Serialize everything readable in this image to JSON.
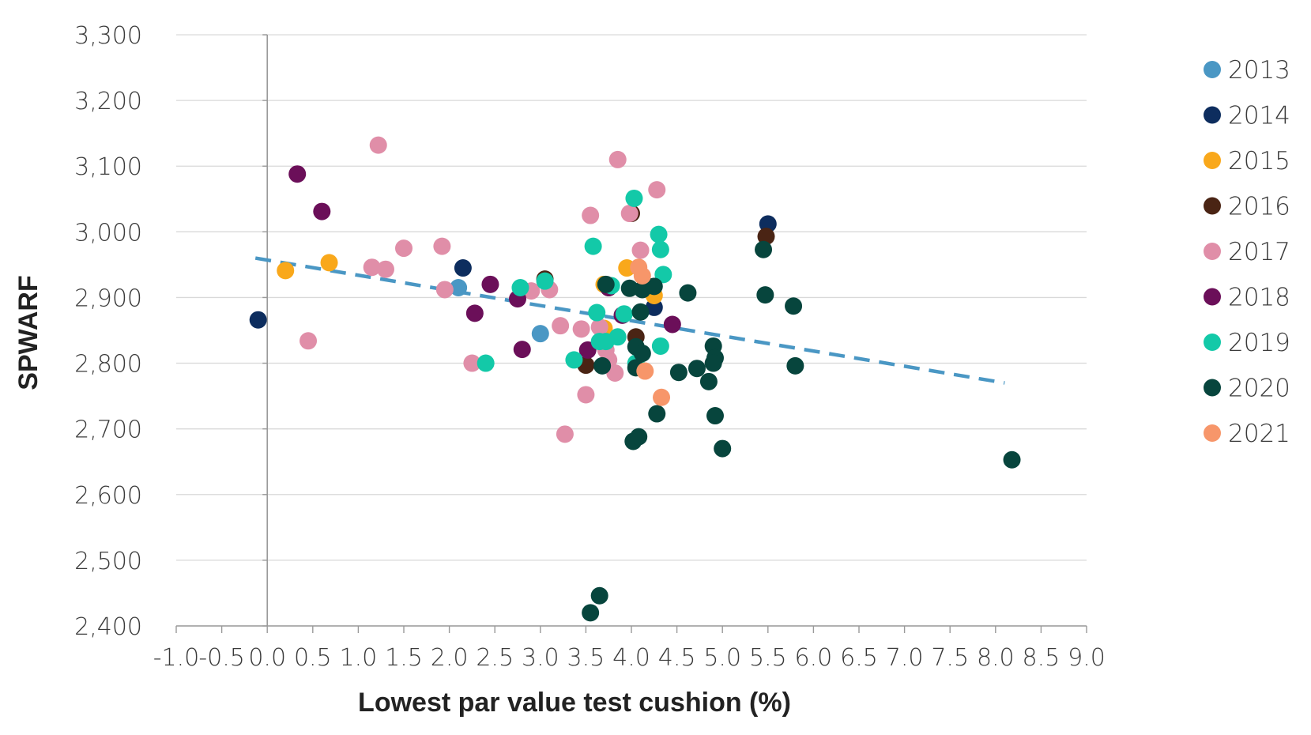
{
  "chart_data": {
    "type": "scatter",
    "xlabel": "Lowest par value test cushion (%)",
    "ylabel": "SPWARF",
    "xlim": [
      -1.0,
      9.0
    ],
    "ylim": [
      2400,
      3300
    ],
    "x_ticks": [
      -1.0,
      -0.5,
      0.0,
      0.5,
      1.0,
      1.5,
      2.0,
      2.5,
      3.0,
      3.5,
      4.0,
      4.5,
      5.0,
      5.5,
      6.0,
      6.5,
      7.0,
      7.5,
      8.0,
      8.5,
      9.0
    ],
    "x_tick_labels": [
      "-1.0",
      "-0.5",
      "0.0",
      "0.5",
      "1.0",
      "1.5",
      "2.0",
      "2.5",
      "3.0",
      "3.5",
      "4.0",
      "4.5",
      "5.0",
      "5.5",
      "6.0",
      "6.5",
      "7.0",
      "7.5",
      "8.0",
      "8.5",
      "9.0"
    ],
    "y_ticks": [
      2400,
      2500,
      2600,
      2700,
      2800,
      2900,
      3000,
      3100,
      3200,
      3300
    ],
    "y_tick_labels": [
      "2,400",
      "2,500",
      "2,600",
      "2,700",
      "2,800",
      "2,900",
      "3,000",
      "3,100",
      "3,200",
      "3,300"
    ],
    "grid": "horizontal",
    "legend_position": "right",
    "trendline": {
      "color": "#4a97c4",
      "style": "dashed",
      "x": [
        -0.13,
        8.1
      ],
      "y": [
        2960,
        2770
      ]
    },
    "series": [
      {
        "name": "2013",
        "color": "#4a97c4",
        "points": [
          [
            2.1,
            2915
          ],
          [
            3.0,
            2845
          ]
        ]
      },
      {
        "name": "2014",
        "color": "#0d2d5e",
        "points": [
          [
            -0.1,
            2866
          ],
          [
            2.15,
            2945
          ],
          [
            4.25,
            2885
          ],
          [
            5.5,
            3012
          ]
        ]
      },
      {
        "name": "2015",
        "color": "#f9a81b",
        "points": [
          [
            0.2,
            2941
          ],
          [
            0.68,
            2953
          ],
          [
            3.7,
            2920
          ],
          [
            3.7,
            2853
          ],
          [
            4.25,
            2903
          ],
          [
            3.95,
            2945
          ]
        ]
      },
      {
        "name": "2016",
        "color": "#4a2414",
        "points": [
          [
            3.05,
            2928
          ],
          [
            3.75,
            2915
          ],
          [
            3.5,
            2797
          ],
          [
            4.05,
            2840
          ],
          [
            4.0,
            3028
          ],
          [
            5.48,
            2993
          ]
        ]
      },
      {
        "name": "2017",
        "color": "#e08ea8",
        "points": [
          [
            1.22,
            3132
          ],
          [
            0.45,
            2834
          ],
          [
            1.15,
            2946
          ],
          [
            1.3,
            2943
          ],
          [
            1.5,
            2975
          ],
          [
            1.92,
            2978
          ],
          [
            1.95,
            2912
          ],
          [
            2.25,
            2800
          ],
          [
            2.9,
            2910
          ],
          [
            3.1,
            2912
          ],
          [
            3.22,
            2857
          ],
          [
            3.45,
            2852
          ],
          [
            3.5,
            2752
          ],
          [
            3.55,
            3025
          ],
          [
            3.85,
            3110
          ],
          [
            3.27,
            2692
          ],
          [
            4.28,
            3064
          ],
          [
            4.1,
            2972
          ],
          [
            3.98,
            3028
          ],
          [
            3.75,
            2805
          ],
          [
            3.82,
            2785
          ],
          [
            3.65,
            2855
          ],
          [
            3.72,
            2820
          ]
        ]
      },
      {
        "name": "2018",
        "color": "#6b0f59",
        "points": [
          [
            0.33,
            3088
          ],
          [
            0.6,
            3031
          ],
          [
            2.45,
            2920
          ],
          [
            2.28,
            2876
          ],
          [
            2.75,
            2898
          ],
          [
            2.8,
            2821
          ],
          [
            3.52,
            2820
          ],
          [
            4.45,
            2859
          ],
          [
            3.9,
            2873
          ],
          [
            3.75,
            2915
          ]
        ]
      },
      {
        "name": "2019",
        "color": "#13c9a8",
        "points": [
          [
            2.4,
            2800
          ],
          [
            2.78,
            2915
          ],
          [
            3.05,
            2925
          ],
          [
            3.37,
            2805
          ],
          [
            3.58,
            2978
          ],
          [
            3.62,
            2877
          ],
          [
            3.65,
            2833
          ],
          [
            3.78,
            2918
          ],
          [
            3.85,
            2840
          ],
          [
            3.92,
            2875
          ],
          [
            4.03,
            3051
          ],
          [
            4.3,
            2996
          ],
          [
            4.32,
            2973
          ],
          [
            4.35,
            2935
          ],
          [
            4.32,
            2826
          ],
          [
            3.72,
            2833
          ],
          [
            4.05,
            2800
          ]
        ]
      },
      {
        "name": "2020",
        "color": "#07453d",
        "points": [
          [
            3.55,
            2420
          ],
          [
            3.65,
            2446
          ],
          [
            4.02,
            2681
          ],
          [
            4.08,
            2688
          ],
          [
            4.28,
            2723
          ],
          [
            4.52,
            2786
          ],
          [
            4.72,
            2792
          ],
          [
            4.85,
            2772
          ],
          [
            4.92,
            2720
          ],
          [
            5.0,
            2670
          ],
          [
            4.9,
            2826
          ],
          [
            4.92,
            2808
          ],
          [
            4.9,
            2800
          ],
          [
            4.62,
            2907
          ],
          [
            5.45,
            2973
          ],
          [
            5.47,
            2904
          ],
          [
            5.78,
            2887
          ],
          [
            5.8,
            2796
          ],
          [
            8.18,
            2653
          ],
          [
            3.68,
            2796
          ],
          [
            3.72,
            2920
          ],
          [
            3.98,
            2914
          ],
          [
            4.12,
            2912
          ],
          [
            4.25,
            2917
          ],
          [
            4.1,
            2878
          ],
          [
            4.05,
            2825
          ],
          [
            4.12,
            2815
          ],
          [
            4.05,
            2793
          ]
        ]
      },
      {
        "name": "2021",
        "color": "#f7966a",
        "points": [
          [
            4.08,
            2946
          ],
          [
            4.12,
            2933
          ],
          [
            4.15,
            2788
          ],
          [
            4.33,
            2748
          ]
        ]
      }
    ]
  }
}
